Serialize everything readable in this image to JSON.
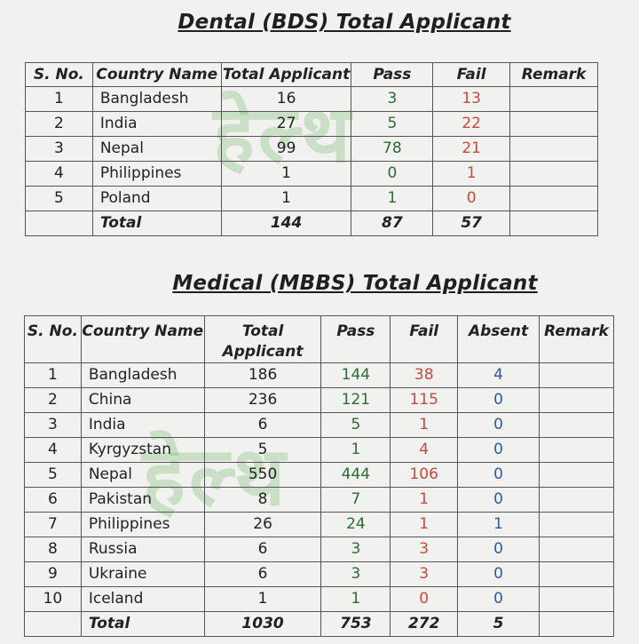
{
  "dental": {
    "title": "Dental (BDS) Total Applicant",
    "headers": [
      "S. No.",
      "Country Name",
      "Total Applicant",
      "Pass",
      "Fail",
      "Remark"
    ],
    "rows": [
      {
        "sno": "1",
        "country": "Bangladesh",
        "total": "16",
        "pass": "3",
        "fail": "13",
        "remark": ""
      },
      {
        "sno": "2",
        "country": "India",
        "total": "27",
        "pass": "5",
        "fail": "22",
        "remark": ""
      },
      {
        "sno": "3",
        "country": "Nepal",
        "total": "99",
        "pass": "78",
        "fail": "21",
        "remark": ""
      },
      {
        "sno": "4",
        "country": "Philippines",
        "total": "1",
        "pass": "0",
        "fail": "1",
        "remark": ""
      },
      {
        "sno": "5",
        "country": "Poland",
        "total": "1",
        "pass": "1",
        "fail": "0",
        "remark": ""
      }
    ],
    "total": {
      "label": "Total",
      "total": "144",
      "pass": "87",
      "fail": "57"
    }
  },
  "medical": {
    "title": "Medical (MBBS) Total Applicant",
    "headers": [
      "S. No.",
      "Country Name",
      "Total Applicant",
      "Pass",
      "Fail",
      "Absent",
      "Remark"
    ],
    "rows": [
      {
        "sno": "1",
        "country": "Bangladesh",
        "total": "186",
        "pass": "144",
        "fail": "38",
        "absent": "4",
        "remark": ""
      },
      {
        "sno": "2",
        "country": "China",
        "total": "236",
        "pass": "121",
        "fail": "115",
        "absent": "0",
        "remark": ""
      },
      {
        "sno": "3",
        "country": "India",
        "total": "6",
        "pass": "5",
        "fail": "1",
        "absent": "0",
        "remark": ""
      },
      {
        "sno": "4",
        "country": "Kyrgyzstan",
        "total": "5",
        "pass": "1",
        "fail": "4",
        "absent": "0",
        "remark": ""
      },
      {
        "sno": "5",
        "country": "Nepal",
        "total": "550",
        "pass": "444",
        "fail": "106",
        "absent": "0",
        "remark": ""
      },
      {
        "sno": "6",
        "country": "Pakistan",
        "total": "8",
        "pass": "7",
        "fail": "1",
        "absent": "0",
        "remark": ""
      },
      {
        "sno": "7",
        "country": "Philippines",
        "total": "26",
        "pass": "24",
        "fail": "1",
        "absent": "1",
        "remark": ""
      },
      {
        "sno": "8",
        "country": "Russia",
        "total": "6",
        "pass": "3",
        "fail": "3",
        "absent": "0",
        "remark": ""
      },
      {
        "sno": "9",
        "country": "Ukraine",
        "total": "6",
        "pass": "3",
        "fail": "3",
        "absent": "0",
        "remark": ""
      },
      {
        "sno": "10",
        "country": "Iceland",
        "total": "1",
        "pass": "1",
        "fail": "0",
        "absent": "0",
        "remark": ""
      }
    ],
    "total": {
      "label": "Total",
      "total": "1030",
      "pass": "753",
      "fail": "272",
      "absent": "5"
    }
  },
  "colors": {
    "pass": "#2c6b36",
    "fail": "#c8493a",
    "absent": "#2b5c9c"
  }
}
